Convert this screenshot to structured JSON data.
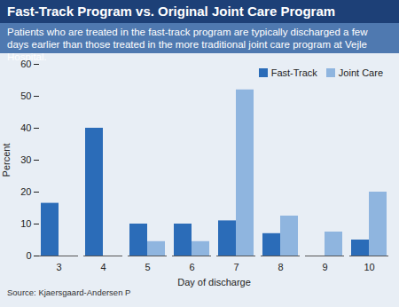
{
  "chart_data": {
    "type": "bar",
    "title": "Fast-Track Program vs. Original Joint Care Program",
    "subtitle": "Patients who are treated in the fast-track program are typically discharged a few days earlier than those treated in the more traditional joint care program at Vejle Hospital.",
    "source": "Source: Kjaersgaard-Andersen P",
    "x_label": "Day of discharge",
    "y_label": "Percent",
    "categories": [
      3,
      4,
      5,
      6,
      7,
      8,
      9,
      10
    ],
    "series": [
      {
        "name": "Fast-Track",
        "color": "#2b6cb8",
        "values": [
          16.5,
          40,
          10,
          10,
          11,
          7,
          null,
          5
        ]
      },
      {
        "name": "Joint Care",
        "color": "#8fb5df",
        "values": [
          null,
          null,
          4.5,
          4.5,
          52,
          12.5,
          7.5,
          20
        ]
      }
    ],
    "ylim": [
      0,
      60
    ],
    "yticks": [
      0,
      10,
      20,
      30,
      40,
      50,
      60
    ],
    "grid": false,
    "legend": "top-right"
  }
}
